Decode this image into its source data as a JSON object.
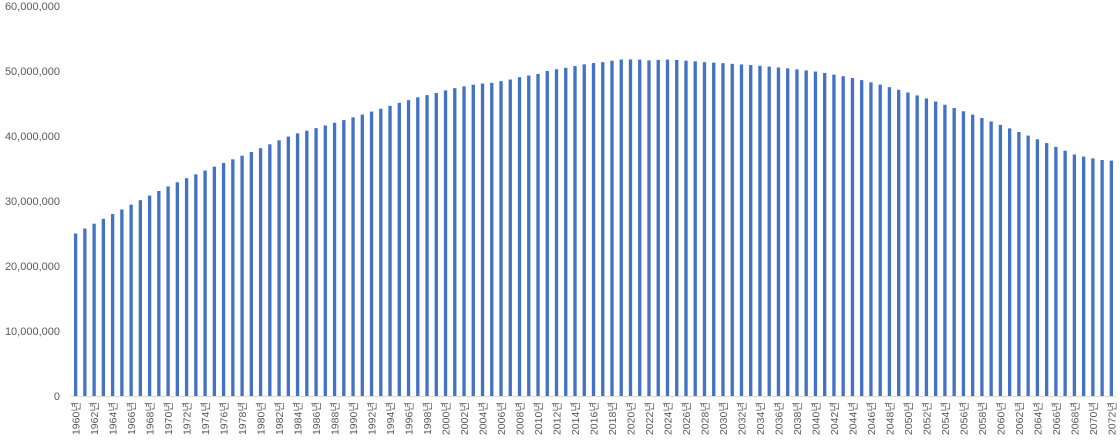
{
  "chart_data": {
    "type": "bar",
    "title": "",
    "xlabel": "",
    "ylabel": "",
    "ylim": [
      0,
      60000000
    ],
    "y_ticks": [
      "0",
      "10,000,000",
      "20,000,000",
      "30,000,000",
      "40,000,000",
      "50,000,000",
      "60,000,000"
    ],
    "grid": false,
    "legend": "none",
    "bar_color": "#4472c4",
    "x_tick_suffix": "년",
    "categories": [
      1960,
      1961,
      1962,
      1963,
      1964,
      1965,
      1966,
      1967,
      1968,
      1969,
      1970,
      1971,
      1972,
      1973,
      1974,
      1975,
      1976,
      1977,
      1978,
      1979,
      1980,
      1981,
      1982,
      1983,
      1984,
      1985,
      1986,
      1987,
      1988,
      1989,
      1990,
      1991,
      1992,
      1993,
      1994,
      1995,
      1996,
      1997,
      1998,
      1999,
      2000,
      2001,
      2002,
      2003,
      2004,
      2005,
      2006,
      2007,
      2008,
      2009,
      2010,
      2011,
      2012,
      2013,
      2014,
      2015,
      2016,
      2017,
      2018,
      2019,
      2020,
      2021,
      2022,
      2023,
      2024,
      2025,
      2026,
      2027,
      2028,
      2029,
      2030,
      2031,
      2032,
      2033,
      2034,
      2035,
      2036,
      2037,
      2038,
      2039,
      2040,
      2041,
      2042,
      2043,
      2044,
      2045,
      2046,
      2047,
      2048,
      2049,
      2050,
      2051,
      2052,
      2053,
      2054,
      2055,
      2056,
      2057,
      2058,
      2059,
      2060,
      2061,
      2062,
      2063,
      2064,
      2065,
      2066,
      2067,
      2068,
      2069,
      2070,
      2071,
      2072
    ],
    "values": [
      25000000,
      25760000,
      26510000,
      27260000,
      27990000,
      28700000,
      29440000,
      30130000,
      30840000,
      31540000,
      32240000,
      32880000,
      33510000,
      34100000,
      34690000,
      35280000,
      35850000,
      36410000,
      36970000,
      37530000,
      38120000,
      38720000,
      39330000,
      39910000,
      40410000,
      40810000,
      41210000,
      41620000,
      42030000,
      42450000,
      42870000,
      43300000,
      43750000,
      44190000,
      44640000,
      45090000,
      45520000,
      45950000,
      46290000,
      46620000,
      47010000,
      47360000,
      47640000,
      47890000,
      48080000,
      48180000,
      48440000,
      48690000,
      49050000,
      49310000,
      49550000,
      50010000,
      50270000,
      50490000,
      50750000,
      51020000,
      51220000,
      51360000,
      51590000,
      51760000,
      51780000,
      51740000,
      51630000,
      51710000,
      51750000,
      51690000,
      51590000,
      51480000,
      51360000,
      51280000,
      51200000,
      51100000,
      51010000,
      50910000,
      50800000,
      50680000,
      50550000,
      50410000,
      50250000,
      50090000,
      49910000,
      49700000,
      49450000,
      49190000,
      48910000,
      48600000,
      48260000,
      47900000,
      47510000,
      47110000,
      46690000,
      46240000,
      45780000,
      45300000,
      44810000,
      44310000,
      43800000,
      43290000,
      42770000,
      42240000,
      41710000,
      41170000,
      40620000,
      40060000,
      39490000,
      38910000,
      38330000,
      37740000,
      37150000,
      36830000,
      36560000,
      36310000,
      36220000
    ]
  }
}
